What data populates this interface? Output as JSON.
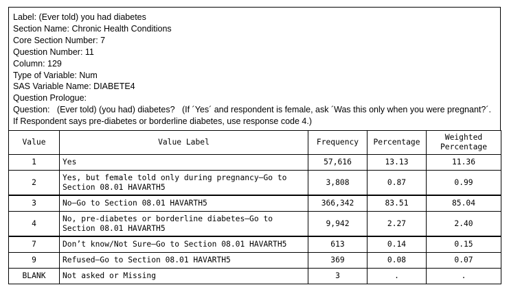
{
  "info": {
    "label": "Label: (Ever told) you had diabetes",
    "section_name": "Section Name: Chronic Health Conditions",
    "core_section_number": "Core Section Number: 7",
    "question_number": "Question Number: 11",
    "column": "Column: 129",
    "type_of_variable": "Type of Variable: Num",
    "sas_variable_name": "SAS Variable Name: DIABETE4",
    "question_prologue": "Question Prologue:",
    "question": "Question:   (Ever told) (you had) diabetes?   (If ´Yes´ and respondent is female, ask ´Was this only when you were pregnant?´. If Respondent says pre-diabetes or borderline diabetes, use response code 4.)"
  },
  "table": {
    "headers": {
      "value": "Value",
      "value_label": "Value Label",
      "frequency": "Frequency",
      "percentage": "Percentage",
      "weighted_line1": "Weighted",
      "weighted_line2": "Percentage"
    },
    "rows": [
      {
        "value": "1",
        "label": "Yes",
        "frequency": "57,616",
        "percentage": "13.13",
        "weighted": "11.36"
      },
      {
        "value": "2",
        "label": "Yes, but female told only during pregnancy—Go to Section 08.01 HAVARTH5",
        "frequency": "3,808",
        "percentage": "0.87",
        "weighted": "0.99"
      },
      {
        "value": "3",
        "label": "No—Go to Section 08.01 HAVARTH5",
        "frequency": "366,342",
        "percentage": "83.51",
        "weighted": "85.04"
      },
      {
        "value": "4",
        "label": "No, pre-diabetes or borderline diabetes—Go to Section 08.01 HAVARTH5",
        "frequency": "9,942",
        "percentage": "2.27",
        "weighted": "2.40"
      },
      {
        "value": "7",
        "label": "Don’t know/Not Sure—Go to Section 08.01 HAVARTH5",
        "frequency": "613",
        "percentage": "0.14",
        "weighted": "0.15"
      },
      {
        "value": "9",
        "label": "Refused—Go to Section 08.01 HAVARTH5",
        "frequency": "369",
        "percentage": "0.08",
        "weighted": "0.07"
      },
      {
        "value": "BLANK",
        "label": "Not asked or Missing",
        "frequency": "3",
        "percentage": ".",
        "weighted": "."
      }
    ]
  }
}
